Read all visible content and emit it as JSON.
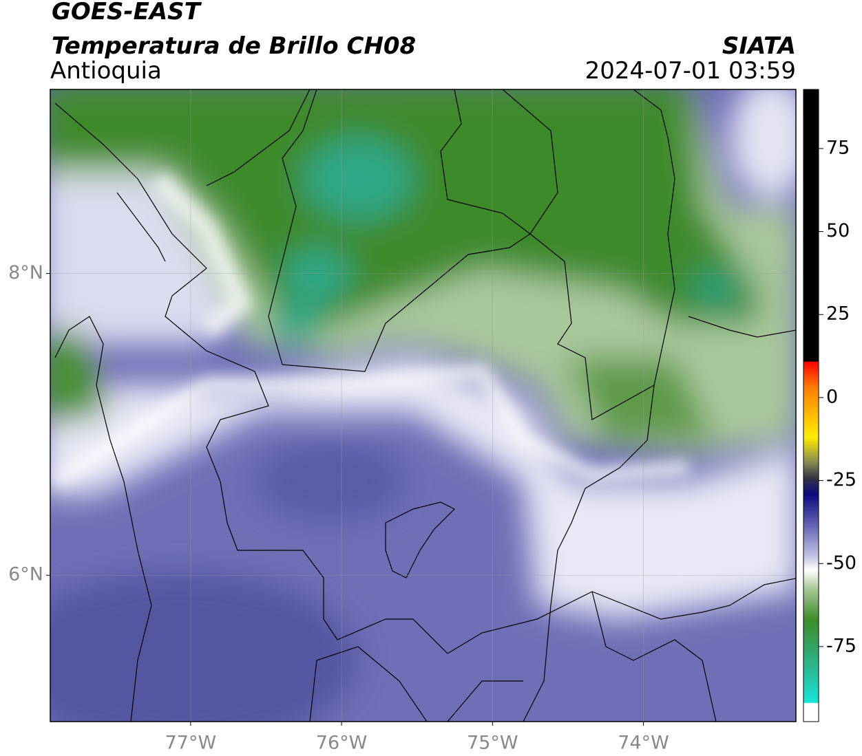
{
  "chart_data": {
    "type": "map",
    "title": "GOES-EAST",
    "subtitle": "Temperatura de Brillo CH08",
    "region": "Antioquia",
    "source": "SIATA",
    "timestamp": "2024-07-01 03:59",
    "xlim": [
      -77.93,
      -72.99
    ],
    "ylim": [
      5.03,
      9.22
    ],
    "xticks": [
      {
        "value": -77,
        "label": "77°W"
      },
      {
        "value": -76,
        "label": "76°W"
      },
      {
        "value": -75,
        "label": "75°W"
      },
      {
        "value": -74,
        "label": "74°W"
      }
    ],
    "yticks": [
      {
        "value": 8,
        "label": "8°N"
      },
      {
        "value": 6,
        "label": "6°N"
      }
    ],
    "grid": true,
    "colorbar": {
      "lim": [
        -97.6,
        92.8
      ],
      "ticks": [
        75,
        50,
        25,
        0,
        -25,
        -50,
        -75
      ]
    }
  }
}
